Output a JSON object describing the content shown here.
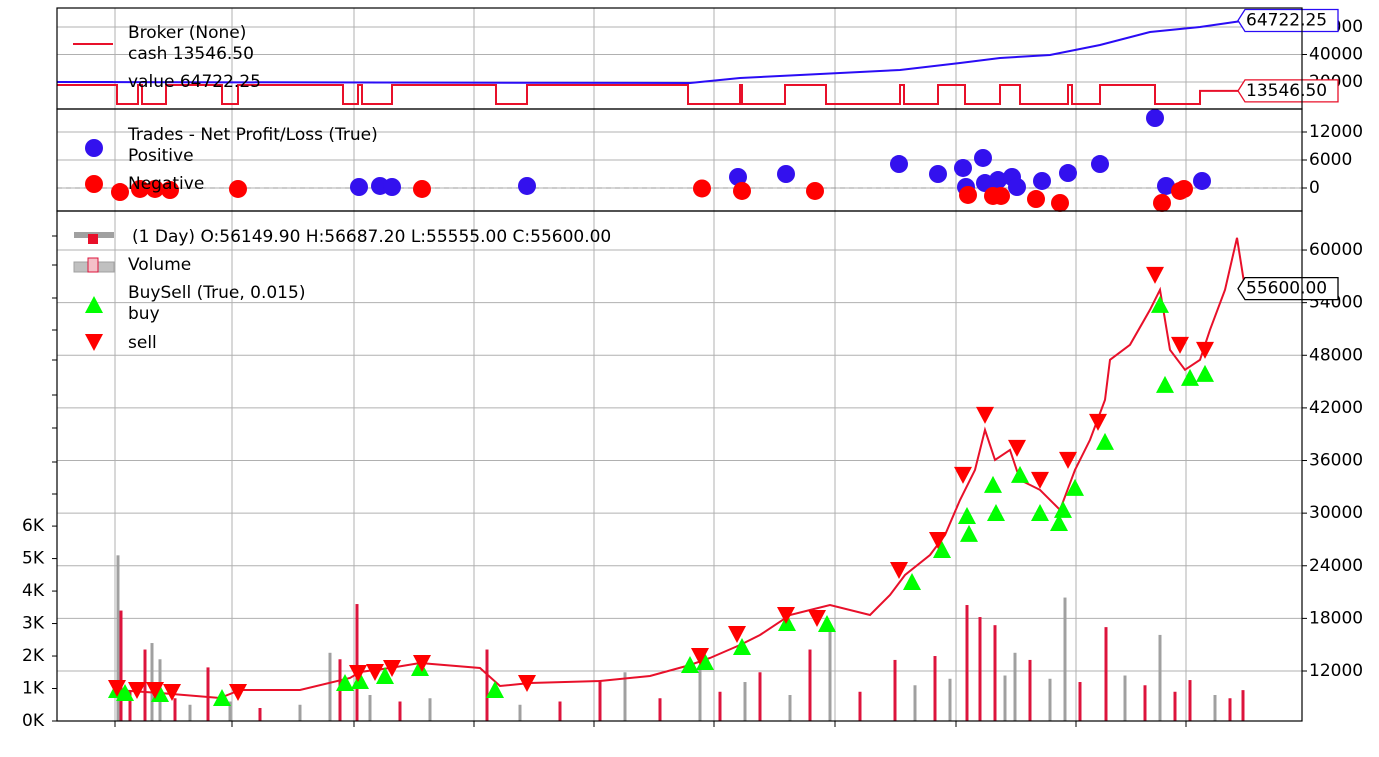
{
  "chart_data": [
    {
      "type": "line",
      "title": "Broker (None)",
      "xlim": [
        0,
        1245
      ],
      "ylim": [
        370,
        73800
      ],
      "yticks": [
        20000,
        40000,
        60000
      ],
      "series": [
        {
          "name": "cash 13546.50",
          "color": "#e8102a",
          "end_label": "13546.50",
          "x": [
            0,
            60,
            60,
            81,
            81,
            85,
            85,
            109,
            109,
            165,
            165,
            181,
            181,
            286,
            286,
            301,
            301,
            305,
            305,
            335,
            335,
            439,
            439,
            470,
            470,
            631,
            631,
            683,
            683,
            685,
            685,
            728,
            728,
            769,
            769,
            843,
            843,
            847,
            847,
            881,
            881,
            908,
            908,
            943,
            943,
            963,
            963,
            1011,
            1011,
            1015,
            1015,
            1043,
            1043,
            1098,
            1098,
            1143,
            1143,
            1188
          ],
          "values": [
            17800,
            17800,
            4000,
            4000,
            17800,
            17800,
            4000,
            4000,
            17800,
            17800,
            4000,
            4000,
            17800,
            17800,
            4000,
            4000,
            17800,
            17800,
            4000,
            4000,
            17800,
            17800,
            4000,
            4000,
            17800,
            17800,
            4000,
            4000,
            17800,
            17800,
            4000,
            4000,
            17800,
            17800,
            4000,
            4000,
            17800,
            17800,
            4000,
            4000,
            17800,
            17800,
            4000,
            4000,
            17800,
            17800,
            4000,
            4000,
            17800,
            17800,
            4000,
            4000,
            17800,
            17800,
            4000,
            4000,
            13546.5,
            13546.5
          ]
        },
        {
          "name": "value 64722.25",
          "color": "#2a0cf5",
          "end_label": "64722.25",
          "x": [
            0,
            633,
            683,
            743,
            843,
            903,
            943,
            993,
            1043,
            1093,
            1143,
            1188
          ],
          "values": [
            20000,
            19270,
            22900,
            25090,
            28720,
            33800,
            37450,
            39630,
            46900,
            56350,
            60000,
            64722.25
          ]
        }
      ]
    },
    {
      "type": "scatter",
      "title": "Trades - Net Profit/Loss (True)",
      "xlim": [
        0,
        1245
      ],
      "ylim": [
        -4930,
        16930
      ],
      "yticks": [
        0,
        6000,
        12000
      ],
      "series": [
        {
          "name": "Positive",
          "color": "#3311ee",
          "x": [
            302,
            323,
            335,
            470,
            681,
            729,
            842,
            881,
            906,
            926,
            909,
            928,
            941,
            955,
            960,
            985,
            1011,
            1043,
            1098,
            1109,
            1145
          ],
          "values": [
            214,
            430,
            214,
            430,
            2360,
            3000,
            5140,
            3000,
            4290,
            6430,
            214,
            1070,
            1710,
            2360,
            214,
            1500,
            3210,
            5140,
            15000,
            430,
            1500
          ]
        },
        {
          "name": "Negative",
          "color": "#ff0000",
          "x": [
            63,
            83,
            98,
            113,
            181,
            365,
            645,
            685,
            758,
            911,
            936,
            944,
            979,
            1003,
            1105,
            1123,
            1127
          ],
          "values": [
            -860,
            -214,
            -214,
            -430,
            -214,
            -214,
            -100,
            -640,
            -640,
            -1500,
            -1710,
            -1710,
            -2360,
            -3210,
            -3210,
            -640,
            -214
          ]
        }
      ]
    },
    {
      "type": "price",
      "title": " (1 Day) O:56149.90 H:56687.20 L:55555.00 C:55600.00",
      "xlim": [
        0,
        1245
      ],
      "ylim": [
        6300,
        64450
      ],
      "yticks": [
        12000,
        18000,
        24000,
        30000,
        36000,
        42000,
        48000,
        54000,
        60000
      ],
      "y2lim": [
        0,
        15700
      ],
      "y2ticks": [
        {
          "value": 0,
          "label": "0K"
        },
        {
          "value": 1000,
          "label": "1K"
        },
        {
          "value": 2000,
          "label": "2K"
        },
        {
          "value": 3000,
          "label": "3K"
        },
        {
          "value": 4000,
          "label": "4K"
        },
        {
          "value": 5000,
          "label": "5K"
        },
        {
          "value": 6000,
          "label": "6K"
        }
      ],
      "price": {
        "color": "#e8102a",
        "end_label": "55600.00",
        "x": [
          58,
          103,
          163,
          183,
          243,
          293,
          303,
          333,
          363,
          423,
          443,
          473,
          543,
          593,
          633,
          653,
          683,
          703,
          733,
          753,
          773,
          813,
          833,
          848,
          873,
          888,
          903,
          918,
          928,
          938,
          953,
          963,
          983,
          1003,
          1018,
          1033,
          1048,
          1053,
          1073,
          1093,
          1103,
          1113,
          1128,
          1143,
          1153,
          1168,
          1180,
          1188
        ],
        "values": [
          9830,
          9490,
          8920,
          9830,
          9830,
          11200,
          11890,
          12340,
          12910,
          12340,
          10290,
          10630,
          10860,
          11430,
          12680,
          13480,
          14970,
          16100,
          18390,
          18960,
          19530,
          18390,
          20670,
          22950,
          25230,
          27510,
          31500,
          34930,
          39490,
          36070,
          37210,
          33790,
          32650,
          30370,
          34930,
          38350,
          42910,
          47480,
          49190,
          53180,
          55460,
          48620,
          46340,
          47480,
          50900,
          55460,
          61390,
          55600
        ]
      },
      "volume": {
        "name": "Volume",
        "axis": "y2",
        "x": [
          61,
          64,
          73,
          88,
          95,
          103,
          118,
          133,
          151,
          173,
          203,
          243,
          273,
          283,
          300,
          313,
          343,
          373,
          430,
          463,
          503,
          543,
          568,
          603,
          643,
          663,
          688,
          703,
          733,
          753,
          773,
          803,
          838,
          858,
          878,
          893,
          910,
          923,
          938,
          948,
          958,
          973,
          993,
          1008,
          1023,
          1049,
          1068,
          1088,
          1103,
          1118,
          1133,
          1158,
          1173,
          1186
        ],
        "values": [
          5100,
          3400,
          900,
          2200,
          2400,
          1900,
          700,
          500,
          1650,
          600,
          400,
          500,
          2100,
          1900,
          3600,
          800,
          600,
          700,
          2200,
          500,
          600,
          1260,
          1500,
          700,
          1570,
          900,
          1200,
          1500,
          800,
          2200,
          2800,
          900,
          1880,
          1100,
          2000,
          1300,
          3570,
          3200,
          2950,
          1400,
          2100,
          1880,
          1300,
          3800,
          1200,
          2890,
          1400,
          1100,
          2650,
          900,
          1260,
          800,
          700,
          950
        ],
        "colors": [
          "#a0a0a0",
          "#dc143c",
          "#dc143c",
          "#dc143c",
          "#a0a0a0",
          "#a0a0a0",
          "#dc143c",
          "#a0a0a0",
          "#dc143c",
          "#a0a0a0",
          "#dc143c",
          "#a0a0a0",
          "#a0a0a0",
          "#dc143c",
          "#dc143c",
          "#a0a0a0",
          "#dc143c",
          "#a0a0a0",
          "#dc143c",
          "#a0a0a0",
          "#dc143c",
          "#dc143c",
          "#a0a0a0",
          "#dc143c",
          "#a0a0a0",
          "#dc143c",
          "#a0a0a0",
          "#dc143c",
          "#a0a0a0",
          "#dc143c",
          "#a0a0a0",
          "#dc143c",
          "#dc143c",
          "#a0a0a0",
          "#dc143c",
          "#a0a0a0",
          "#dc143c",
          "#dc143c",
          "#dc143c",
          "#a0a0a0",
          "#a0a0a0",
          "#dc143c",
          "#a0a0a0",
          "#a0a0a0",
          "#dc143c",
          "#dc143c",
          "#a0a0a0",
          "#dc143c",
          "#a0a0a0",
          "#dc143c",
          "#dc143c",
          "#a0a0a0",
          "#dc143c",
          "#dc143c"
        ]
      },
      "markers_title": "BuySell (True, 0.015)",
      "series": [
        {
          "name": "buy",
          "color": "#00ff00",
          "marker": "up",
          "x": [
            60,
            68,
            103,
            165,
            288,
            303,
            328,
            363,
            438,
            633,
            648,
            685,
            730,
            770,
            855,
            885,
            912,
            910,
            939,
            936,
            963,
            983,
            1002,
            1006,
            1018,
            1048,
            1103,
            1108,
            1133,
            1148
          ],
          "values": [
            9830,
            9490,
            9380,
            8920,
            10630,
            10860,
            11430,
            12340,
            9830,
            12680,
            13030,
            14740,
            17480,
            17360,
            22150,
            25800,
            27630,
            29680,
            30020,
            33220,
            34360,
            30020,
            28880,
            30370,
            32880,
            38120,
            53750,
            44620,
            45420,
            45880
          ]
        },
        {
          "name": "sell",
          "color": "#ff0000",
          "marker": "down",
          "x": [
            60,
            80,
            98,
            115,
            181,
            301,
            318,
            335,
            365,
            470,
            643,
            680,
            729,
            760,
            842,
            881,
            906,
            928,
            960,
            983,
            1011,
            1041,
            1098,
            1123,
            1148
          ],
          "values": [
            10060,
            9830,
            9830,
            9600,
            9600,
            11770,
            11890,
            12340,
            12910,
            10630,
            13710,
            16220,
            18390,
            18050,
            23520,
            26940,
            34360,
            41200,
            37440,
            33790,
            36070,
            40400,
            57170,
            49190,
            48620
          ]
        }
      ]
    }
  ]
}
